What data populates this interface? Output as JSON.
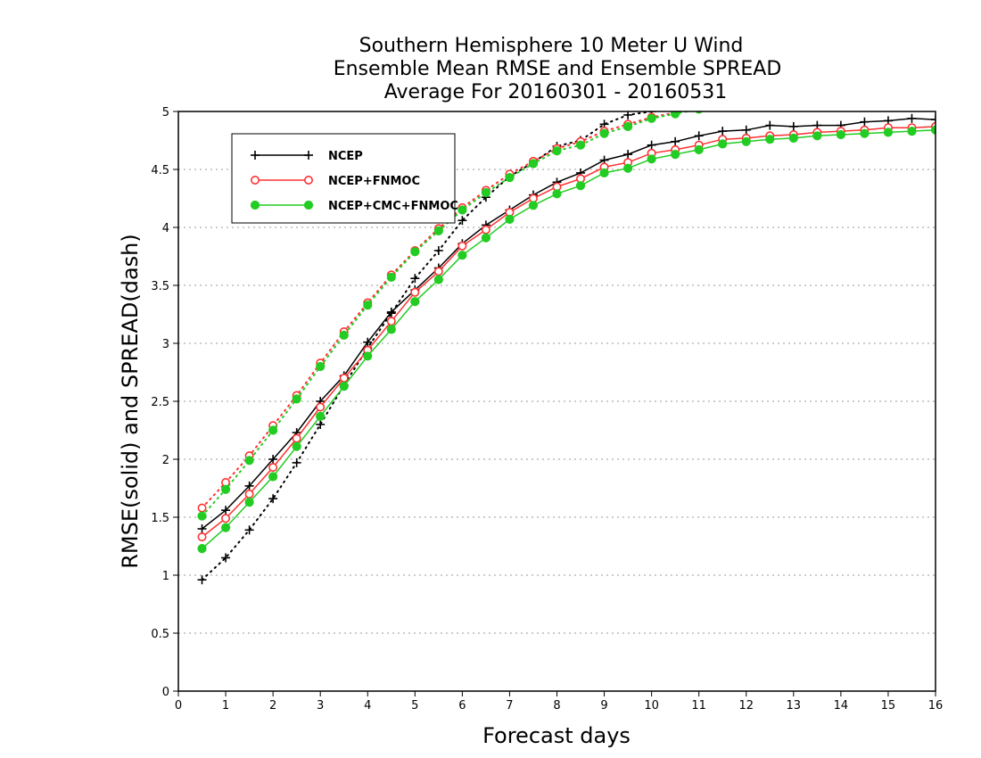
{
  "chart_data": {
    "type": "line",
    "title_lines": [
      "Southern Hemisphere 10 Meter U Wind",
      "Ensemble Mean RMSE and Ensemble SPREAD",
      "Average For 20160301 - 20160531"
    ],
    "xlabel": "Forecast days",
    "ylabel": "RMSE(solid) and SPREAD(dash)",
    "xlim": [
      0,
      16
    ],
    "ylim": [
      0,
      5
    ],
    "xticks": [
      0,
      1,
      2,
      3,
      4,
      5,
      6,
      7,
      8,
      9,
      10,
      11,
      12,
      13,
      14,
      15,
      16
    ],
    "yticks": [
      0,
      0.5,
      1,
      1.5,
      2,
      2.5,
      3,
      3.5,
      4,
      4.5,
      5
    ],
    "grid": "horizontal-dotted",
    "legend_position": "top-left",
    "x": [
      0.5,
      1,
      1.5,
      2,
      2.5,
      3,
      3.5,
      4,
      4.5,
      5,
      5.5,
      6,
      6.5,
      7,
      7.5,
      8,
      8.5,
      9,
      9.5,
      10,
      10.5,
      11,
      11.5,
      12,
      12.5,
      13,
      13.5,
      14,
      14.5,
      15,
      15.5,
      16
    ],
    "series": [
      {
        "name": "NCEP",
        "color": "#000000",
        "marker": "plus",
        "rmse": [
          1.4,
          1.56,
          1.77,
          2.0,
          2.23,
          2.5,
          2.72,
          3.01,
          3.27,
          3.46,
          3.65,
          3.86,
          4.02,
          4.15,
          4.28,
          4.39,
          4.47,
          4.58,
          4.63,
          4.71,
          4.74,
          4.79,
          4.83,
          4.84,
          4.88,
          4.87,
          4.88,
          4.88,
          4.91,
          4.92,
          4.94,
          4.93
        ],
        "spread": [
          0.96,
          1.15,
          1.39,
          1.66,
          1.97,
          2.3,
          2.64,
          2.96,
          3.26,
          3.56,
          3.8,
          4.06,
          4.26,
          4.44,
          4.56,
          4.7,
          4.75,
          4.89,
          4.97,
          5.0,
          5.02,
          5.04,
          5.06,
          5.08,
          5.1,
          5.12,
          5.14,
          5.15,
          5.17,
          5.18,
          5.19,
          5.2
        ]
      },
      {
        "name": "NCEP+FNMOC",
        "color": "#ff3030",
        "marker": "open-circle",
        "rmse": [
          1.33,
          1.49,
          1.7,
          1.93,
          2.18,
          2.45,
          2.7,
          2.94,
          3.19,
          3.44,
          3.62,
          3.84,
          3.98,
          4.13,
          4.25,
          4.35,
          4.42,
          4.52,
          4.56,
          4.64,
          4.67,
          4.71,
          4.76,
          4.77,
          4.79,
          4.8,
          4.82,
          4.83,
          4.84,
          4.86,
          4.86,
          4.87
        ],
        "spread": [
          1.58,
          1.8,
          2.03,
          2.29,
          2.55,
          2.83,
          3.1,
          3.35,
          3.59,
          3.8,
          3.99,
          4.17,
          4.32,
          4.46,
          4.57,
          4.68,
          4.74,
          4.83,
          4.89,
          4.95,
          4.99,
          5.03,
          5.06,
          5.09,
          5.11,
          5.13,
          5.15,
          5.16,
          5.18,
          5.19,
          5.2,
          5.21
        ]
      },
      {
        "name": "NCEP+CMC+FNMOC",
        "color": "#22cc22",
        "marker": "filled-circle",
        "rmse": [
          1.23,
          1.41,
          1.63,
          1.85,
          2.11,
          2.37,
          2.63,
          2.89,
          3.12,
          3.36,
          3.55,
          3.76,
          3.91,
          4.07,
          4.19,
          4.29,
          4.36,
          4.47,
          4.51,
          4.59,
          4.63,
          4.67,
          4.72,
          4.74,
          4.76,
          4.77,
          4.79,
          4.8,
          4.81,
          4.82,
          4.83,
          4.84
        ],
        "spread": [
          1.51,
          1.74,
          1.99,
          2.25,
          2.52,
          2.8,
          3.07,
          3.33,
          3.57,
          3.79,
          3.97,
          4.15,
          4.3,
          4.43,
          4.55,
          4.66,
          4.71,
          4.81,
          4.87,
          4.94,
          4.98,
          5.02,
          5.05,
          5.08,
          5.1,
          5.12,
          5.14,
          5.15,
          5.17,
          5.18,
          5.19,
          5.2
        ]
      }
    ]
  }
}
